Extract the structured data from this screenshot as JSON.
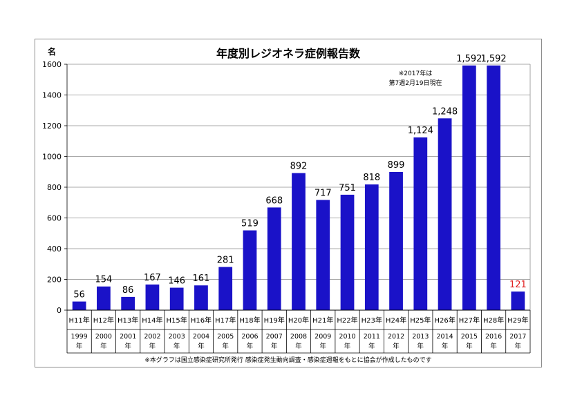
{
  "colors": {
    "bar": "#1a12c8",
    "highlight_label": "#e02020",
    "grid": "#8c8c8c",
    "text": "#000000"
  },
  "chart_data": {
    "type": "bar",
    "title": "年度別レジオネラ症例報告数",
    "ylabel": "名",
    "ylim": [
      0,
      1600
    ],
    "yticks": [
      "0",
      "200",
      "400",
      "600",
      "800",
      "1000",
      "1200",
      "1400",
      "1600"
    ],
    "grid": true,
    "categories_era": [
      "H11年",
      "H12年",
      "H13年",
      "H14年",
      "H15年",
      "H16年",
      "H17年",
      "H18年",
      "H19年",
      "H20年",
      "H21年",
      "H22年",
      "H23年",
      "H24年",
      "H25年",
      "H26年",
      "H27年",
      "H28年",
      "H29年"
    ],
    "categories_year": [
      "1999",
      "2000",
      "2001",
      "2002",
      "2003",
      "2004",
      "2005",
      "2006",
      "2007",
      "2008",
      "2009",
      "2010",
      "2011",
      "2012",
      "2013",
      "2014",
      "2015",
      "2016",
      "2017"
    ],
    "year_suffix": "年",
    "values": [
      56,
      154,
      86,
      167,
      146,
      161,
      281,
      519,
      668,
      892,
      717,
      751,
      818,
      899,
      1124,
      1248,
      1592,
      1592,
      121
    ],
    "data_labels": [
      "56",
      "154",
      "86",
      "167",
      "146",
      "161",
      "281",
      "519",
      "668",
      "892",
      "717",
      "751",
      "818",
      "899",
      "1,124",
      "1,248",
      "1,592",
      "1,592",
      "121"
    ],
    "highlight_index": 18,
    "annotation": [
      "※2017年は",
      "第7週2月19日現在"
    ],
    "source_note": "※本グラフは国立感染症研究所発行 感染症発生動向調査・感染症週報をもとに協会が作成したものです"
  }
}
